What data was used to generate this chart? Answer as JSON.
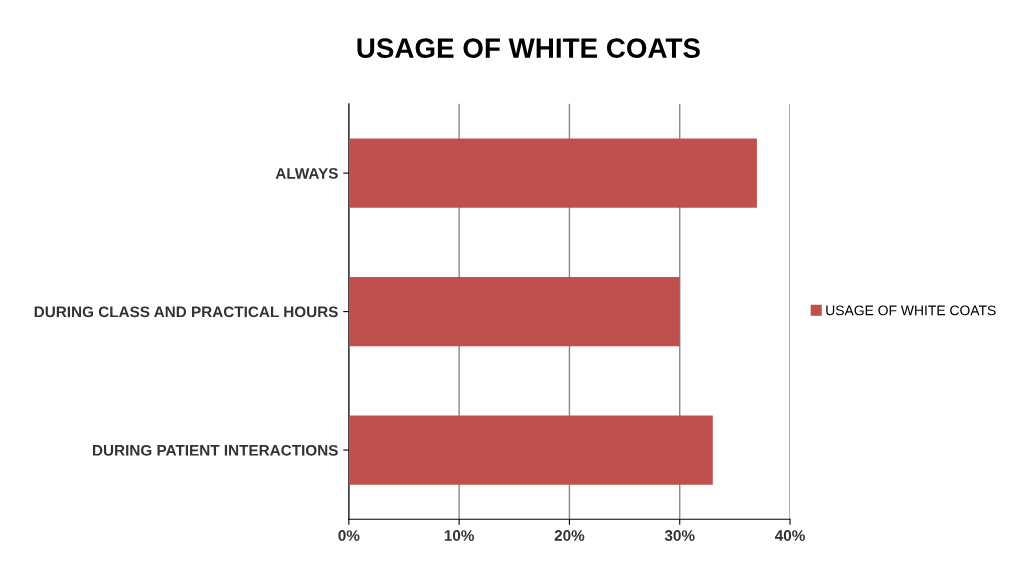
{
  "chart_data": {
    "type": "bar",
    "orientation": "horizontal",
    "title": "USAGE OF WHITE COATS",
    "categories": [
      "ALWAYS",
      "DURING CLASS AND PRACTICAL HOURS",
      "DURING PATIENT INTERACTIONS"
    ],
    "series": [
      {
        "name": "USAGE OF WHITE COATS",
        "color": "#c0504d",
        "values": [
          37,
          30,
          33
        ]
      }
    ],
    "xlim": [
      0,
      40
    ],
    "xticks": [
      {
        "value": 0,
        "label": "0%"
      },
      {
        "value": 10,
        "label": "10%"
      },
      {
        "value": 20,
        "label": "20%"
      },
      {
        "value": 30,
        "label": "30%"
      },
      {
        "value": 40,
        "label": "40%"
      }
    ],
    "grid": "x",
    "legend": "right"
  }
}
